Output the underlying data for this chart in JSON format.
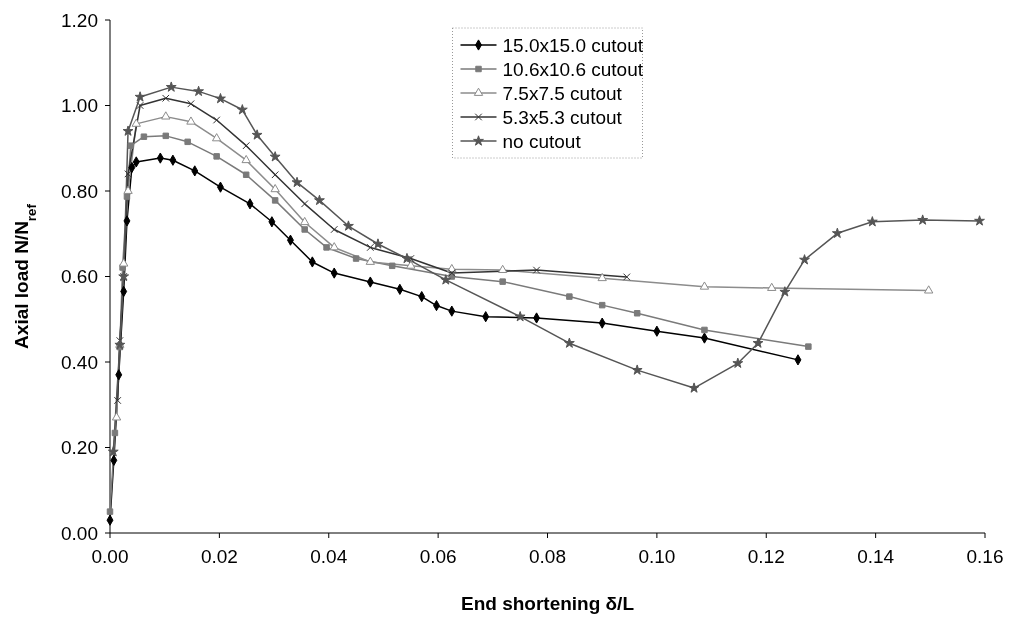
{
  "chart_data": {
    "type": "line",
    "xlabel": "End shortening δ/L",
    "ylabel": "Axial load N/N$_{ref}$",
    "xlim": [
      0,
      0.16
    ],
    "xticks": [
      {
        "value": 0,
        "label": "0.00"
      },
      0.02,
      0.04,
      0.06,
      0.08,
      {
        "value": 0.1,
        "label": "0.10"
      },
      0.12,
      0.14,
      0.16
    ],
    "ylim": [
      0,
      1.2
    ],
    "yticks": [
      {
        "value": 0,
        "label": "0.00"
      },
      {
        "value": 0.2,
        "label": "0.20"
      },
      {
        "value": 0.4,
        "label": "0.40"
      },
      {
        "value": 0.6,
        "label": "0.60"
      },
      {
        "value": 0.8,
        "label": "0.80"
      },
      {
        "value": 1,
        "label": "1.00"
      },
      {
        "value": 1.2,
        "label": "1.20"
      }
    ],
    "legend": "top",
    "line_style": "solid",
    "series": [
      {
        "name": "15.0x15.0 cutout",
        "color": "#000000",
        "marker": "diamond",
        "x": [
          0,
          0.0007,
          0.0016,
          0.0025,
          0.0031,
          0.004,
          0.0048,
          0.0092,
          0.0115,
          0.0155,
          0.0202,
          0.0256,
          0.0296,
          0.033,
          0.037,
          0.041,
          0.0476,
          0.053,
          0.057,
          0.0597,
          0.0625,
          0.0687,
          0.078,
          0.09,
          0.1,
          0.1087,
          0.1258
        ],
        "values": [
          0.03,
          0.17,
          0.37,
          0.565,
          0.73,
          0.855,
          0.868,
          0.877,
          0.872,
          0.847,
          0.809,
          0.77,
          0.728,
          0.685,
          0.634,
          0.608,
          0.587,
          0.57,
          0.553,
          0.532,
          0.519,
          0.506,
          0.503,
          0.491,
          0.472,
          0.456,
          0.405
        ]
      },
      {
        "name": "10.6x10.6 cutout",
        "color": "#7a7a7a",
        "marker": "square",
        "x": [
          0,
          0.0009,
          0.0018,
          0.0023,
          0.0031,
          0.0038,
          0.0062,
          0.0102,
          0.0142,
          0.0195,
          0.0249,
          0.0302,
          0.0356,
          0.0396,
          0.045,
          0.0516,
          0.0625,
          0.0718,
          0.084,
          0.09,
          0.0964,
          0.1087,
          0.1277
        ],
        "values": [
          0.05,
          0.234,
          0.435,
          0.621,
          0.787,
          0.906,
          0.927,
          0.929,
          0.915,
          0.881,
          0.838,
          0.778,
          0.71,
          0.668,
          0.642,
          0.625,
          0.6,
          0.588,
          0.553,
          0.533,
          0.514,
          0.475,
          0.436
        ]
      },
      {
        "name": "7.5x7.5 cutout",
        "color": "#8c8c8c",
        "marker": "triangle",
        "x": [
          0.0012,
          0.0018,
          0.0025,
          0.0033,
          0.0048,
          0.0102,
          0.0148,
          0.0195,
          0.0249,
          0.0302,
          0.0356,
          0.041,
          0.0476,
          0.055,
          0.0625,
          0.0718,
          0.09,
          0.1087,
          0.121,
          0.1497
        ],
        "values": [
          0.27,
          0.44,
          0.63,
          0.8,
          0.957,
          0.974,
          0.962,
          0.923,
          0.872,
          0.804,
          0.727,
          0.668,
          0.634,
          0.625,
          0.617,
          0.615,
          0.596,
          0.576,
          0.573,
          0.567
        ]
      },
      {
        "name": "5.3x5.3 cutout",
        "color": "#333333",
        "marker": "cross",
        "x": [
          0.0014,
          0.0018,
          0.0025,
          0.0033,
          0.0055,
          0.0102,
          0.0148,
          0.0195,
          0.0249,
          0.0302,
          0.0356,
          0.041,
          0.0476,
          0.055,
          0.0625,
          0.078,
          0.0945
        ],
        "values": [
          0.31,
          0.45,
          0.6,
          0.84,
          1.0,
          1.017,
          1.004,
          0.966,
          0.906,
          0.838,
          0.77,
          0.71,
          0.668,
          0.642,
          0.608,
          0.615,
          0.599
        ]
      },
      {
        "name": "no cutout",
        "color": "#555555",
        "marker": "star",
        "x": [
          0.0006,
          0.0018,
          0.0025,
          0.0033,
          0.0055,
          0.0112,
          0.0162,
          0.0202,
          0.0242,
          0.0269,
          0.0302,
          0.0342,
          0.0383,
          0.0436,
          0.049,
          0.0543,
          0.0614,
          0.075,
          0.084,
          0.0964,
          0.1068,
          0.1148,
          0.1185,
          0.1234,
          0.127,
          0.133,
          0.1394,
          0.1486,
          0.159
        ],
        "values": [
          0.19,
          0.44,
          0.6,
          0.94,
          1.02,
          1.043,
          1.033,
          1.016,
          0.99,
          0.931,
          0.88,
          0.82,
          0.778,
          0.718,
          0.676,
          0.642,
          0.592,
          0.506,
          0.444,
          0.381,
          0.339,
          0.397,
          0.444,
          0.564,
          0.639,
          0.701,
          0.728,
          0.732,
          0.73
        ]
      }
    ]
  }
}
